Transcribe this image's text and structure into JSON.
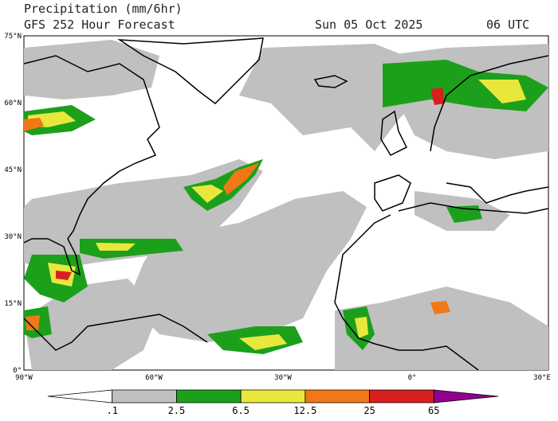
{
  "header": {
    "title": "Precipitation (mm/6hr)",
    "subtitle": "GFS 252 Hour Forecast",
    "date": "Sun 05 Oct 2025",
    "time": "06 UTC"
  },
  "map": {
    "lat_labels": [
      "75°N",
      "60°N",
      "45°N",
      "30°N",
      "15°N",
      "0°"
    ],
    "lon_labels": [
      "90°W",
      "60°W",
      "30°W",
      "0°",
      "30°E"
    ]
  },
  "colorbar": {
    "labels": [
      ".1",
      "2.5",
      "6.5",
      "12.5",
      "25",
      "65"
    ],
    "colors": [
      "#ffffff",
      "#c0c0c0",
      "#1ca01c",
      "#e8e83c",
      "#f07818",
      "#d82020",
      "#900090"
    ]
  }
}
